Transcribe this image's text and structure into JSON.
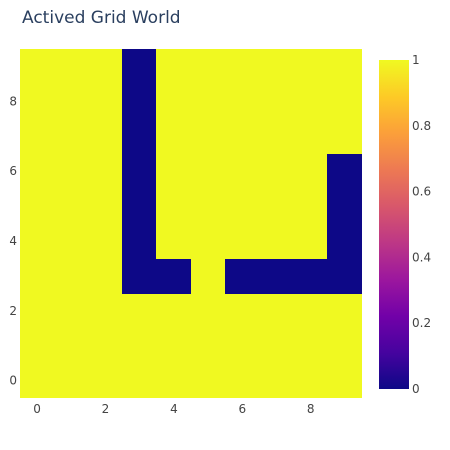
{
  "chart_data": {
    "type": "heatmap",
    "title": "Actived Grid World",
    "xlabel": "",
    "ylabel": "",
    "x_range": [
      -0.5,
      9.5
    ],
    "y_range": [
      -0.5,
      9.5
    ],
    "x_ticks": [
      0,
      2,
      4,
      6,
      8
    ],
    "y_ticks": [
      0,
      2,
      4,
      6,
      8
    ],
    "colorscale": {
      "name": "Plasma",
      "min": 0,
      "max": 1,
      "ticks": [
        0,
        0.2,
        0.4,
        0.6,
        0.8,
        1
      ]
    },
    "grid": false,
    "z_rows_bottom_to_top": [
      [
        1,
        1,
        1,
        1,
        1,
        1,
        1,
        1,
        1,
        1
      ],
      [
        1,
        1,
        1,
        1,
        1,
        1,
        1,
        1,
        1,
        1
      ],
      [
        1,
        1,
        1,
        1,
        1,
        1,
        1,
        1,
        1,
        1
      ],
      [
        1,
        1,
        1,
        0,
        0,
        1,
        0,
        0,
        0,
        0
      ],
      [
        1,
        1,
        1,
        0,
        1,
        1,
        1,
        1,
        1,
        0
      ],
      [
        1,
        1,
        1,
        0,
        1,
        1,
        1,
        1,
        1,
        0
      ],
      [
        1,
        1,
        1,
        0,
        1,
        1,
        1,
        1,
        1,
        0
      ],
      [
        1,
        1,
        1,
        0,
        1,
        1,
        1,
        1,
        1,
        1
      ],
      [
        1,
        1,
        1,
        0,
        1,
        1,
        1,
        1,
        1,
        1
      ],
      [
        1,
        1,
        1,
        0,
        1,
        1,
        1,
        1,
        1,
        1
      ]
    ]
  },
  "colors": {
    "low": "#0d0887",
    "high": "#f0f921",
    "text": "#2a3f5f",
    "tick_text": "#444444"
  }
}
